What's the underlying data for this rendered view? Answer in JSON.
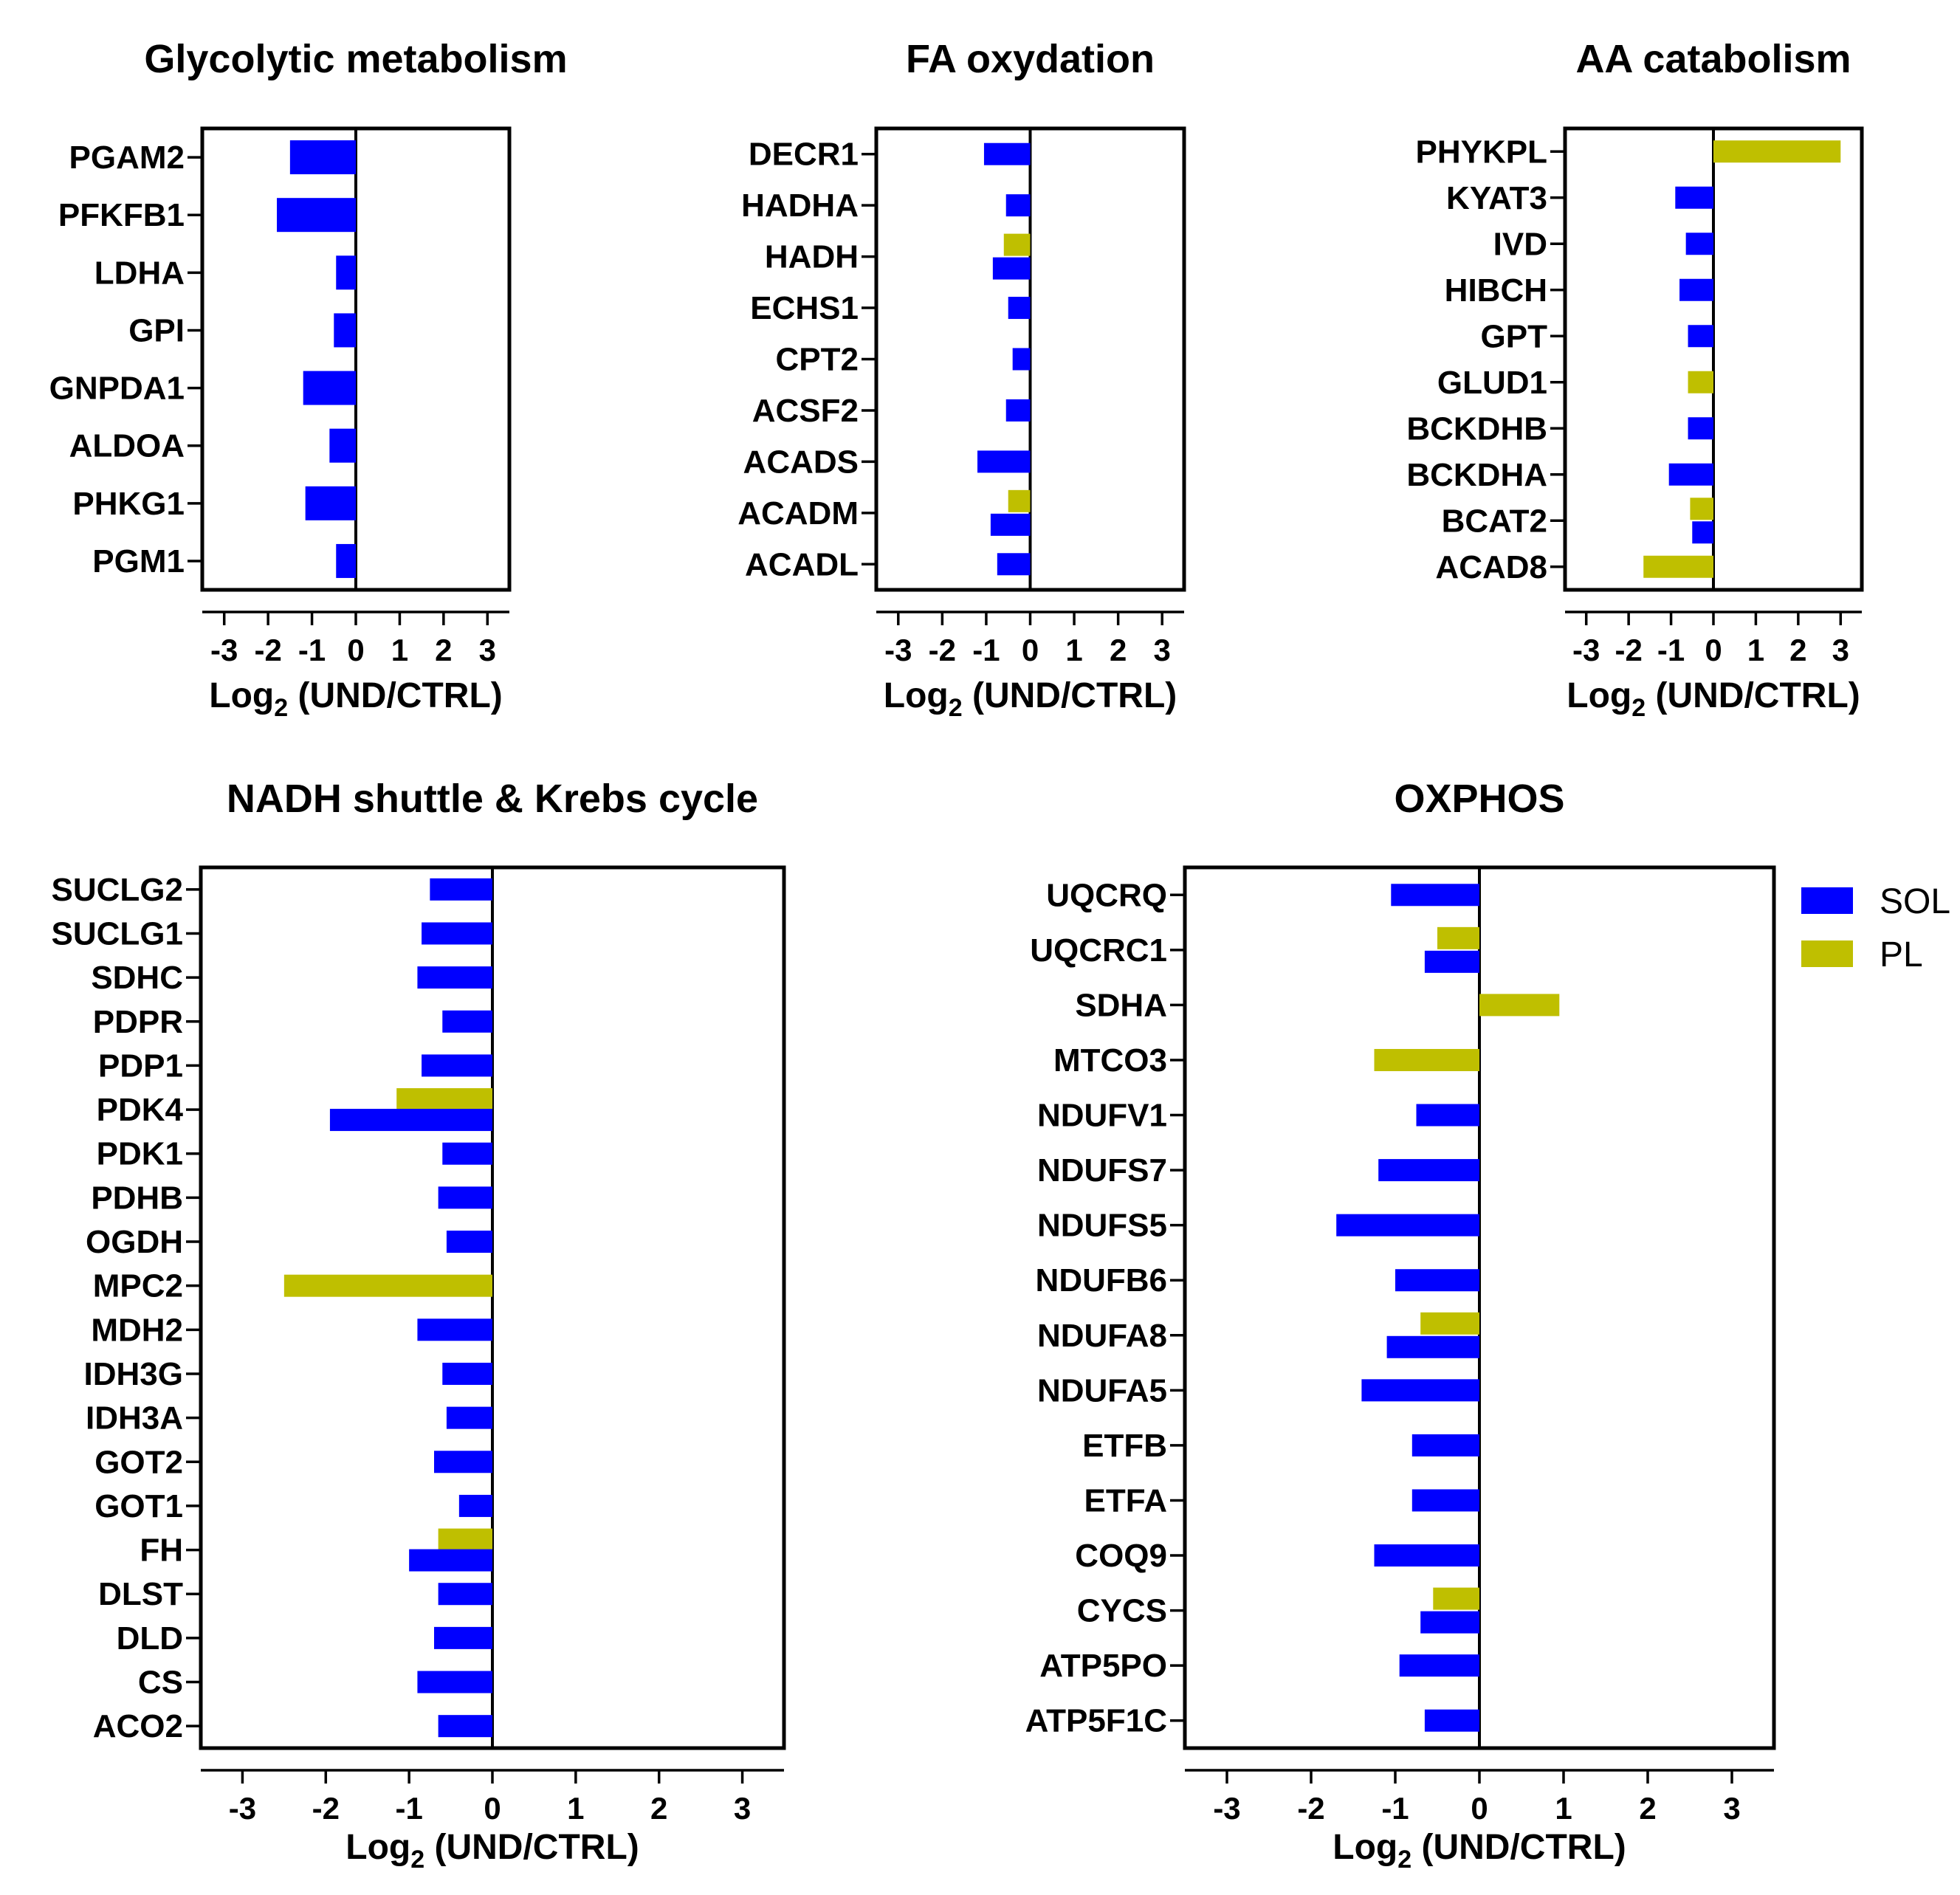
{
  "chart_data": [
    {
      "type": "bar",
      "orientation": "horizontal",
      "title": "Glycolytic metabolism",
      "xlabel": "Log2 (UND/CTRL)",
      "xlim": [
        -3.5,
        3.5
      ],
      "xticks": [
        "-3",
        "-2",
        "-1",
        "0",
        "1",
        "2",
        "3"
      ],
      "categories": [
        "PGAM2",
        "PFKFB1",
        "LDHA",
        "GPI",
        "GNPDA1",
        "ALDOA",
        "PHKG1",
        "PGM1"
      ],
      "series": [
        {
          "name": "SOL",
          "color": "#0000ff",
          "values": [
            -1.5,
            -1.8,
            -0.45,
            -0.5,
            -1.2,
            -0.6,
            -1.15,
            -0.45
          ]
        },
        {
          "name": "PL",
          "color": "#bfbf00",
          "values": [
            null,
            null,
            null,
            null,
            null,
            null,
            null,
            null
          ]
        }
      ]
    },
    {
      "type": "bar",
      "orientation": "horizontal",
      "title": "FA oxydation",
      "xlabel": "Log2 (UND/CTRL)",
      "xlim": [
        -3.5,
        3.5
      ],
      "xticks": [
        "-3",
        "-2",
        "-1",
        "0",
        "1",
        "2",
        "3"
      ],
      "categories": [
        "DECR1",
        "HADHA",
        "HADH",
        "ECHS1",
        "CPT2",
        "ACSF2",
        "ACADS",
        "ACADM",
        "ACADL"
      ],
      "series": [
        {
          "name": "SOL",
          "color": "#0000ff",
          "values": [
            -1.05,
            -0.55,
            -0.85,
            -0.5,
            -0.4,
            -0.55,
            -1.2,
            -0.9,
            -0.75
          ]
        },
        {
          "name": "PL",
          "color": "#bfbf00",
          "values": [
            null,
            null,
            -0.6,
            null,
            null,
            null,
            null,
            -0.5,
            null
          ]
        }
      ]
    },
    {
      "type": "bar",
      "orientation": "horizontal",
      "title": "AA catabolism",
      "xlabel": "Log2 (UND/CTRL)",
      "xlim": [
        -3.5,
        3.5
      ],
      "xticks": [
        "-3",
        "-2",
        "-1",
        "0",
        "1",
        "2",
        "3"
      ],
      "categories": [
        "PHYKPL",
        "KYAT3",
        "IVD",
        "HIBCH",
        "GPT",
        "GLUD1",
        "BCKDHB",
        "BCKDHA",
        "BCAT2",
        "ACAD8"
      ],
      "series": [
        {
          "name": "SOL",
          "color": "#0000ff",
          "values": [
            null,
            -0.9,
            -0.65,
            -0.8,
            -0.6,
            null,
            -0.6,
            -1.05,
            -0.5,
            null
          ]
        },
        {
          "name": "PL",
          "color": "#bfbf00",
          "values": [
            3.0,
            null,
            null,
            null,
            null,
            -0.6,
            null,
            null,
            -0.55,
            -1.65
          ]
        }
      ]
    },
    {
      "type": "bar",
      "orientation": "horizontal",
      "title": "NADH shuttle & Krebs cycle",
      "xlabel": "Log2 (UND/CTRL)",
      "xlim": [
        -3.5,
        3.5
      ],
      "xticks": [
        "-3",
        "-2",
        "-1",
        "0",
        "1",
        "2",
        "3"
      ],
      "categories": [
        "SUCLG2",
        "SUCLG1",
        "SDHC",
        "PDPR",
        "PDP1",
        "PDK4",
        "PDK1",
        "PDHB",
        "OGDH",
        "MPC2",
        "MDH2",
        "IDH3G",
        "IDH3A",
        "GOT2",
        "GOT1",
        "FH",
        "DLST",
        "DLD",
        "CS",
        "ACO2"
      ],
      "series": [
        {
          "name": "SOL",
          "color": "#0000ff",
          "values": [
            -0.75,
            -0.85,
            -0.9,
            -0.6,
            -0.85,
            -1.95,
            -0.6,
            -0.65,
            -0.55,
            null,
            -0.9,
            -0.6,
            -0.55,
            -0.7,
            -0.4,
            -1.0,
            -0.65,
            -0.7,
            -0.9,
            -0.65
          ]
        },
        {
          "name": "PL",
          "color": "#bfbf00",
          "values": [
            null,
            null,
            null,
            null,
            null,
            -1.15,
            null,
            null,
            null,
            -2.5,
            null,
            null,
            null,
            null,
            null,
            -0.65,
            null,
            null,
            null,
            null
          ]
        }
      ]
    },
    {
      "type": "bar",
      "orientation": "horizontal",
      "title": "OXPHOS",
      "xlabel": "Log2 (UND/CTRL)",
      "xlim": [
        -3.5,
        3.5
      ],
      "xticks": [
        "-3",
        "-2",
        "-1",
        "0",
        "1",
        "2",
        "3"
      ],
      "categories": [
        "UQCRQ",
        "UQCRC1",
        "SDHA",
        "MTCO3",
        "NDUFV1",
        "NDUFS7",
        "NDUFS5",
        "NDUFB6",
        "NDUFA8",
        "NDUFA5",
        "ETFB",
        "ETFA",
        "COQ9",
        "CYCS",
        "ATP5PO",
        "ATP5F1C"
      ],
      "series": [
        {
          "name": "SOL",
          "color": "#0000ff",
          "values": [
            -1.05,
            -0.65,
            null,
            null,
            -0.75,
            -1.2,
            -1.7,
            -1.0,
            -1.1,
            -1.4,
            -0.8,
            -0.8,
            -1.25,
            -0.7,
            -0.95,
            -0.65
          ]
        },
        {
          "name": "PL",
          "color": "#bfbf00",
          "values": [
            null,
            -0.5,
            0.95,
            -1.25,
            null,
            null,
            null,
            null,
            -0.7,
            null,
            null,
            null,
            null,
            -0.55,
            null,
            null
          ]
        }
      ],
      "legend": {
        "position": "top-right",
        "entries": [
          "SOL",
          "PL"
        ]
      }
    }
  ]
}
